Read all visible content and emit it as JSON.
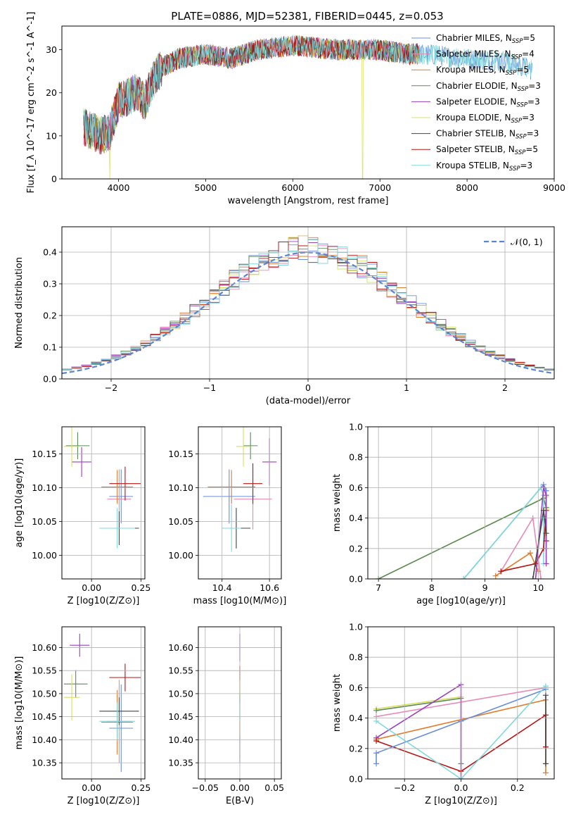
{
  "title": "PLATE=0886, MJD=52381, FIBERID=0445, z=0.053",
  "colors": {
    "chabrier_miles": "#6a8fd8",
    "salpeter_miles": "#e88ab6",
    "kroupa_miles": "#e07b2a",
    "chabrier_elodie": "#5b8a5b",
    "salpeter_elodie": "#9b3fc0",
    "kroupa_elodie": "#d9e060",
    "chabrier_stelib": "#444444",
    "salpeter_stelib": "#b81414",
    "kroupa_stelib": "#7fd9dc",
    "gauss": "#5b84d6"
  },
  "chart_data": [
    {
      "id": "spectrum",
      "type": "line",
      "xlabel": "wavelength [Angstrom, rest frame]",
      "ylabel": "Flux [f_λ 10^-17 erg cm^-2 s^-1 A^-1]",
      "xlim": [
        3350,
        9000
      ],
      "ylim": [
        0,
        35.5
      ],
      "xticks": [
        "4000",
        "5000",
        "6000",
        "7000",
        "8000",
        "9000"
      ],
      "yticks": [
        "0",
        "10",
        "20",
        "30"
      ],
      "legend": [
        "Chabrier MILES, N_SSP=5",
        "Salpeter MILES, N_SSP=4",
        "Kroupa MILES, N_SSP=5",
        "Chabrier ELODIE, N_SSP=3",
        "Salpeter ELODIE, N_SSP=3",
        "Kroupa ELODIE, N_SSP=3",
        "Chabrier STELIB, N_SSP=3",
        "Salpeter STELIB, N_SSP=5",
        "Kroupa STELIB, N_SSP=3"
      ],
      "legend_placement": "right",
      "continuum_x": [
        3600,
        3700,
        3800,
        3900,
        4000,
        4100,
        4200,
        4300,
        4400,
        4500,
        4700,
        5000,
        5300,
        5600,
        6000,
        6500,
        7000,
        7300,
        7500,
        8000,
        8500,
        8800
      ],
      "continuum_y": [
        12,
        11,
        10,
        11,
        18,
        19,
        20,
        18,
        23,
        26,
        28,
        29,
        28,
        30,
        31,
        30,
        30,
        29,
        29,
        28,
        27,
        25
      ],
      "grid": false
    },
    {
      "id": "residuals",
      "type": "histogram",
      "xlabel": "(data-model)/error",
      "ylabel": "Normed distribution",
      "xlim": [
        -2.5,
        2.5
      ],
      "ylim": [
        0,
        0.48
      ],
      "xticks": [
        "−2",
        "−1",
        "0",
        "1",
        "2"
      ],
      "yticks": [
        "0.0",
        "0.1",
        "0.2",
        "0.3",
        "0.4"
      ],
      "legend": [
        "𝒩(0, 1)"
      ],
      "legend_placement": "top-right",
      "grid": true
    },
    {
      "id": "age-vs-z",
      "type": "errorbar",
      "xlabel": "Z [log10(Z/Z⊙)]",
      "ylabel": "age [log10(age/yr)]",
      "xlim": [
        -0.15,
        0.27
      ],
      "ylim": [
        9.965,
        10.19
      ],
      "xticks": [
        "0.00",
        "0.25"
      ],
      "yticks": [
        "10.00",
        "10.05",
        "10.10",
        "10.15"
      ],
      "grid": true,
      "points": [
        {
          "series": "chabrier_miles",
          "x": 0.15,
          "xerr": 0.06,
          "y": 10.087,
          "yerr": 0.04
        },
        {
          "series": "salpeter_miles",
          "x": 0.14,
          "xerr": 0.06,
          "y": 10.083,
          "yerr": 0.044
        },
        {
          "series": "kroupa_miles",
          "x": 0.13,
          "xerr": 0.08,
          "y": 10.101,
          "yerr": 0.025
        },
        {
          "series": "chabrier_elodie",
          "x": -0.07,
          "xerr": 0.06,
          "y": 10.162,
          "yerr": 0.02
        },
        {
          "series": "salpeter_elodie",
          "x": -0.05,
          "xerr": 0.05,
          "y": 10.138,
          "yerr": 0.022
        },
        {
          "series": "kroupa_elodie",
          "x": -0.1,
          "xerr": 0.04,
          "y": 10.161,
          "yerr": 0.03
        },
        {
          "series": "chabrier_stelib",
          "x": 0.14,
          "xerr": 0.1,
          "y": 10.04,
          "yerr": 0.025
        },
        {
          "series": "salpeter_stelib",
          "x": 0.17,
          "xerr": 0.08,
          "y": 10.106,
          "yerr": 0.025
        },
        {
          "series": "kroupa_stelib",
          "x": 0.13,
          "xerr": 0.09,
          "y": 10.04,
          "yerr": 0.03
        }
      ]
    },
    {
      "id": "age-vs-mass",
      "type": "errorbar",
      "xlabel": "mass [log10(M/M⊙)]",
      "ylabel": "",
      "xlim": [
        10.3,
        10.65
      ],
      "ylim": [
        9.965,
        10.19
      ],
      "xticks": [
        "10.4",
        "10.6"
      ],
      "yticks": [
        "10.00",
        "10.05",
        "10.10",
        "10.15"
      ],
      "grid": true,
      "points": [
        {
          "series": "chabrier_miles",
          "x": 10.43,
          "xerr": 0.11,
          "y": 10.087,
          "yerr": 0.04
        },
        {
          "series": "salpeter_miles",
          "x": 10.53,
          "xerr": 0.08,
          "y": 10.083,
          "yerr": 0.045
        },
        {
          "series": "kroupa_miles",
          "x": 10.44,
          "xerr": 0.1,
          "y": 10.101,
          "yerr": 0.025
        },
        {
          "series": "chabrier_elodie",
          "x": 10.52,
          "xerr": 0.03,
          "y": 10.162,
          "yerr": 0.02
        },
        {
          "series": "salpeter_elodie",
          "x": 10.6,
          "xerr": 0.03,
          "y": 10.138,
          "yerr": 0.035
        },
        {
          "series": "kroupa_elodie",
          "x": 10.49,
          "xerr": 0.03,
          "y": 10.161,
          "yerr": 0.03
        },
        {
          "series": "chabrier_stelib",
          "x": 10.46,
          "xerr": 0.06,
          "y": 10.04,
          "yerr": 0.03
        },
        {
          "series": "salpeter_stelib",
          "x": 10.53,
          "xerr": 0.04,
          "y": 10.106,
          "yerr": 0.03
        },
        {
          "series": "kroupa_stelib",
          "x": 10.44,
          "xerr": 0.04,
          "y": 10.04,
          "yerr": 0.035
        }
      ]
    },
    {
      "id": "mass-weight-vs-age",
      "type": "line",
      "xlabel": "age [log10(age/yr)]",
      "ylabel": "mass weight",
      "xlim": [
        6.8,
        10.3
      ],
      "ylim": [
        0,
        1.0
      ],
      "xticks": [
        "7",
        "8",
        "9",
        "10"
      ],
      "yticks": [
        "0.0",
        "0.2",
        "0.4",
        "0.6",
        "0.8",
        "1.0"
      ],
      "grid": true,
      "series": [
        {
          "key": "kroupa_elodie",
          "x": [
            7.0,
            10.15,
            10.15
          ],
          "y": [
            0.0,
            0.54,
            0.46
          ]
        },
        {
          "key": "chabrier_elodie",
          "x": [
            7.0,
            10.1,
            10.15
          ],
          "y": [
            0.0,
            0.53,
            0.47
          ]
        },
        {
          "key": "chabrier_miles",
          "x": [
            8.6,
            10.1,
            10.15,
            10.15
          ],
          "y": [
            0.0,
            0.62,
            0.58,
            0.2
          ]
        },
        {
          "key": "kroupa_stelib",
          "x": [
            8.6,
            10.05,
            10.1,
            10.1
          ],
          "y": [
            0.0,
            0.6,
            0.55,
            0.1
          ]
        },
        {
          "key": "salpeter_miles",
          "x": [
            9.3,
            9.9,
            10.05
          ],
          "y": [
            0.05,
            0.4,
            0.0
          ]
        },
        {
          "key": "kroupa_miles",
          "x": [
            9.2,
            9.85,
            10.0
          ],
          "y": [
            0.02,
            0.17,
            0.05
          ]
        },
        {
          "key": "salpeter_stelib",
          "x": [
            9.3,
            9.95,
            10.1,
            10.15,
            10.15
          ],
          "y": [
            0.05,
            0.1,
            0.2,
            0.45,
            0.25
          ]
        },
        {
          "key": "salpeter_elodie",
          "x": [
            9.95,
            10.1,
            10.15,
            10.15
          ],
          "y": [
            0.0,
            0.6,
            0.55,
            0.1
          ]
        },
        {
          "key": "chabrier_stelib",
          "x": [
            9.9,
            10.1,
            10.15
          ],
          "y": [
            0.0,
            0.45,
            0.3
          ]
        }
      ]
    },
    {
      "id": "mass-vs-z",
      "type": "errorbar",
      "xlabel": "Z [log10(Z/Z⊙)]",
      "ylabel": "mass [log10(M/M⊙)]",
      "xlim": [
        -0.15,
        0.27
      ],
      "ylim": [
        10.315,
        10.645
      ],
      "xticks": [
        "0.00",
        "0.25"
      ],
      "yticks": [
        "10.35",
        "10.40",
        "10.45",
        "10.50",
        "10.55",
        "10.60"
      ],
      "grid": true,
      "points": [
        {
          "series": "chabrier_miles",
          "x": 0.15,
          "xerr": 0.06,
          "y": 10.425,
          "yerr": 0.095
        },
        {
          "series": "salpeter_miles",
          "x": 0.14,
          "xerr": 0.06,
          "y": 10.44,
          "yerr": 0.09
        },
        {
          "series": "kroupa_miles",
          "x": 0.13,
          "xerr": 0.08,
          "y": 10.438,
          "yerr": 0.07
        },
        {
          "series": "chabrier_elodie",
          "x": -0.08,
          "xerr": 0.06,
          "y": 10.521,
          "yerr": 0.03
        },
        {
          "series": "salpeter_elodie",
          "x": -0.06,
          "xerr": 0.05,
          "y": 10.605,
          "yerr": 0.025
        },
        {
          "series": "kroupa_elodie",
          "x": -0.1,
          "xerr": 0.04,
          "y": 10.492,
          "yerr": 0.05
        },
        {
          "series": "chabrier_stelib",
          "x": 0.14,
          "xerr": 0.1,
          "y": 10.462,
          "yerr": 0.03
        },
        {
          "series": "salpeter_stelib",
          "x": 0.17,
          "xerr": 0.08,
          "y": 10.535,
          "yerr": 0.03
        },
        {
          "series": "kroupa_stelib",
          "x": 0.13,
          "xerr": 0.09,
          "y": 10.44,
          "yerr": 0.04
        }
      ]
    },
    {
      "id": "mass-vs-ebv",
      "type": "errorbar",
      "xlabel": "E(B-V)",
      "ylabel": "",
      "xlim": [
        -0.06,
        0.06
      ],
      "ylim": [
        10.315,
        10.645
      ],
      "xticks": [
        "−0.05",
        "0.00",
        "0.05"
      ],
      "yticks": [
        "10.35",
        "10.40",
        "10.45",
        "10.50",
        "10.55",
        "10.60"
      ],
      "grid": true,
      "points": [
        {
          "series": "salpeter_elodie",
          "x": 0.0,
          "xerr": 0.0,
          "y": 10.6,
          "yerr": 0.03
        },
        {
          "series": "salpeter_stelib",
          "x": 0.0,
          "xerr": 0.0,
          "y": 10.53,
          "yerr": 0.03
        },
        {
          "series": "kroupa_elodie",
          "x": 0.0,
          "xerr": 0.0,
          "y": 10.5,
          "yerr": 0.03
        },
        {
          "series": "chabrier_elodie",
          "x": 0.0,
          "xerr": 0.0,
          "y": 10.47,
          "yerr": 0.03
        },
        {
          "series": "kroupa_stelib",
          "x": 0.0,
          "xerr": 0.0,
          "y": 10.44,
          "yerr": 0.04
        },
        {
          "series": "kroupa_miles",
          "x": 0.0,
          "xerr": 0.0,
          "y": 10.4,
          "yerr": 0.04
        },
        {
          "series": "chabrier_miles",
          "x": 0.0,
          "xerr": 0.0,
          "y": 10.38,
          "yerr": 0.03
        }
      ]
    },
    {
      "id": "mass-weight-vs-z",
      "type": "line",
      "xlabel": "Z [log10(Z/Z⊙)]",
      "ylabel": "mass weight",
      "xlim": [
        -0.33,
        0.33
      ],
      "ylim": [
        0,
        1.0
      ],
      "xticks": [
        "−0.2",
        "0.0",
        "0.2"
      ],
      "yticks": [
        "0.0",
        "0.2",
        "0.4",
        "0.6",
        "0.8",
        "1.0"
      ],
      "grid": true,
      "series": [
        {
          "key": "kroupa_elodie",
          "x": [
            -0.3,
            0.0,
            0.0
          ],
          "y": [
            0.46,
            0.54,
            0.0
          ]
        },
        {
          "key": "chabrier_elodie",
          "x": [
            -0.3,
            0.0,
            0.0
          ],
          "y": [
            0.45,
            0.53,
            0.1
          ]
        },
        {
          "key": "salpeter_miles",
          "x": [
            -0.3,
            0.3
          ],
          "y": [
            0.41,
            0.6
          ]
        },
        {
          "key": "kroupa_miles",
          "x": [
            -0.3,
            0.3,
            0.3
          ],
          "y": [
            0.26,
            0.52,
            0.04
          ]
        },
        {
          "key": "salpeter_elodie",
          "x": [
            -0.3,
            0.0,
            0.0
          ],
          "y": [
            0.27,
            0.62,
            0.0
          ]
        },
        {
          "key": "salpeter_stelib",
          "x": [
            -0.3,
            0.0,
            0.3,
            0.3
          ],
          "y": [
            0.25,
            0.05,
            0.42,
            0.21
          ]
        },
        {
          "key": "chabrier_miles",
          "x": [
            -0.3,
            -0.3,
            0.0,
            0.3
          ],
          "y": [
            0.1,
            0.17,
            0.38,
            0.59
          ]
        },
        {
          "key": "kroupa_stelib",
          "x": [
            -0.3,
            0.0,
            0.3
          ],
          "y": [
            0.38,
            0.0,
            0.61
          ]
        },
        {
          "key": "chabrier_stelib",
          "x": [
            0.3,
            0.3
          ],
          "y": [
            0.55,
            0.1
          ]
        }
      ]
    }
  ]
}
